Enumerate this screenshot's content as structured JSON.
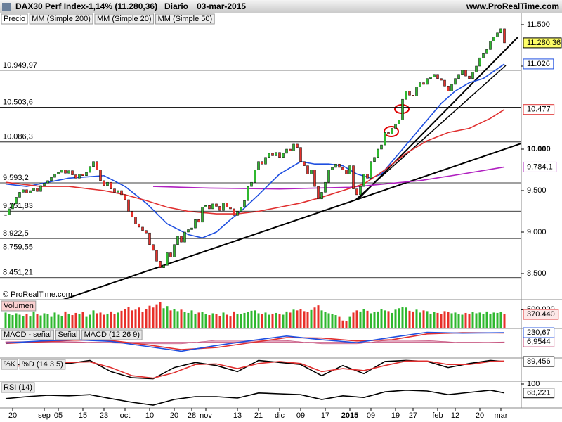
{
  "header": {
    "instrument": "DAX30 Perf Index",
    "change": "-1,14% (11.280,36)",
    "period": "Diario",
    "date": "03-mar-2015",
    "site": "www.ProRealTime.com"
  },
  "chart_data": [
    {
      "type": "candlestick",
      "name": "Precio",
      "annotation": "© ProRealTime.com",
      "categories": [
        null,
        null,
        "20",
        null,
        null,
        null,
        null,
        null,
        null,
        null,
        null,
        "sep",
        null,
        null,
        null,
        "05",
        null,
        null,
        null,
        null,
        null,
        null,
        "15",
        null,
        null,
        null,
        null,
        null,
        "23",
        null,
        null,
        null,
        null,
        null,
        "oct",
        null,
        null,
        null,
        null,
        null,
        null,
        "10",
        null,
        null,
        null,
        null,
        null,
        null,
        "20",
        null,
        null,
        null,
        null,
        "28",
        null,
        null,
        null,
        "nov",
        null,
        null,
        null,
        null,
        null,
        null,
        null,
        null,
        "13",
        null,
        null,
        null,
        null,
        null,
        "21",
        null,
        null,
        null,
        null,
        null,
        "dic",
        null,
        null,
        null,
        null,
        null,
        "09",
        null,
        null,
        null,
        null,
        null,
        null,
        "17",
        null,
        null,
        null,
        null,
        null,
        null,
        "2015",
        null,
        null,
        null,
        null,
        null,
        "09",
        null,
        null,
        null,
        null,
        null,
        null,
        "19",
        null,
        null,
        null,
        null,
        "27",
        null,
        null,
        null,
        null,
        null,
        null,
        "feb",
        null,
        null,
        null,
        null,
        "12",
        null,
        null,
        null,
        null,
        null,
        null,
        "20",
        null,
        null,
        null,
        null,
        null,
        "mar",
        null
      ],
      "values": [
        9210,
        9280,
        9340,
        9420,
        9480,
        9510,
        9470,
        9500,
        9530,
        9490,
        9560,
        9590,
        9620,
        9660,
        9700,
        9720,
        9750,
        9710,
        9740,
        9690,
        9650,
        9700,
        9680,
        9720,
        9790,
        9850,
        9750,
        9620,
        9560,
        9600,
        9520,
        9480,
        9500,
        9450,
        9390,
        9250,
        9180,
        9100,
        9060,
        9020,
        8990,
        8850,
        8780,
        8650,
        8570,
        8600,
        8750,
        8700,
        8850,
        8950,
        8880,
        9000,
        9030,
        9050,
        9150,
        9120,
        9300,
        9320,
        9280,
        9340,
        9310,
        9260,
        9350,
        9300,
        9280,
        9200,
        9250,
        9300,
        9380,
        9550,
        9600,
        9750,
        9850,
        9820,
        9900,
        9950,
        9920,
        9960,
        9900,
        9950,
        10000,
        9980,
        10060,
        10020,
        9850,
        9800,
        9700,
        9750,
        9550,
        9400,
        9480,
        9600,
        9750,
        9780,
        9820,
        9780,
        9750,
        9700,
        9800,
        9520,
        9450,
        9550,
        9700,
        9650,
        9850,
        9900,
        10000,
        10050,
        10200,
        10180,
        10250,
        10300,
        10350,
        10600,
        10700,
        10650,
        10640,
        10750,
        10800,
        10780,
        10850,
        10870,
        10900,
        10850,
        10830,
        10760,
        10700,
        10780,
        10850,
        10900,
        10950,
        10880,
        10850,
        10930,
        11000,
        11100,
        11150,
        11200,
        11300,
        11350,
        11400,
        11450,
        11280.36
      ],
      "last_label": "11.280,36",
      "up_color": "#2fb82f",
      "down_color": "#e8302a",
      "ylim": [
        8195,
        11610
      ],
      "yticks": [
        {
          "value": 11500,
          "label": "11.500"
        },
        {
          "value": 11000,
          "label": "11.000"
        },
        {
          "value": 10000,
          "label": "10.000"
        },
        {
          "value": 9500,
          "label": "9.500"
        },
        {
          "value": 9000,
          "label": "9.000"
        },
        {
          "value": 8500,
          "label": "8.500"
        }
      ],
      "levels": [
        {
          "value": 10949.97,
          "label": "10.949,97"
        },
        {
          "value": 10503.6,
          "label": "10.503,6"
        },
        {
          "value": 10086.3,
          "label": "10.086,3"
        },
        {
          "value": 9593.2,
          "label": "9.593,2"
        },
        {
          "value": 9251.83,
          "label": "9.251,83"
        },
        {
          "value": 8922.5,
          "label": "8.922,5"
        },
        {
          "value": 8759.55,
          "label": "8.759,55"
        },
        {
          "value": 8451.21,
          "label": "8.451,21"
        }
      ],
      "series": [
        {
          "name": "MM (Simple 200)",
          "color": "#b020c0",
          "last_label": "9.784,1",
          "x": [
            42,
            58,
            78,
            98,
            118,
            130,
            142
          ],
          "values": [
            9550,
            9530,
            9520,
            9540,
            9620,
            9700,
            9784.1
          ]
        },
        {
          "name": "MM (Simple 20)",
          "color": "#1f4fe0",
          "last_label": "11.026",
          "x": [
            0,
            6,
            18,
            28,
            34,
            40,
            46,
            52,
            56,
            60,
            64,
            67,
            72,
            78,
            84,
            88,
            92,
            96,
            100,
            104,
            107,
            112,
            118,
            124,
            128,
            132,
            136,
            142
          ],
          "values": [
            9580,
            9550,
            9650,
            9680,
            9550,
            9350,
            9100,
            8970,
            8930,
            9000,
            9150,
            9250,
            9450,
            9700,
            9850,
            9820,
            9820,
            9800,
            9700,
            9650,
            9700,
            9950,
            10250,
            10550,
            10700,
            10800,
            10850,
            11026
          ]
        },
        {
          "name": "MM (Simple 50)",
          "color": "#e03030",
          "last_label": "10.477",
          "x": [
            0,
            10,
            18,
            28,
            34,
            40,
            46,
            52,
            60,
            66,
            72,
            78,
            84,
            90,
            96,
            102,
            108,
            114,
            120,
            126,
            132,
            138,
            142
          ],
          "values": [
            9600,
            9550,
            9550,
            9500,
            9450,
            9380,
            9300,
            9250,
            9220,
            9220,
            9250,
            9300,
            9350,
            9420,
            9500,
            9580,
            9750,
            9950,
            10100,
            10200,
            10250,
            10370,
            10477
          ]
        }
      ]
    },
    {
      "type": "bar",
      "title": "Volumen",
      "last_label": "370.440",
      "ylim": [
        0,
        740000
      ],
      "yticks": [
        {
          "value": 500000,
          "label": "500.000"
        }
      ],
      "values": [
        420000,
        380000,
        350000,
        400000,
        360000,
        330000,
        390000,
        310000,
        450000,
        370000,
        340000,
        400000,
        380000,
        300000,
        420000,
        360000,
        330000,
        450000,
        390000,
        350000,
        410000,
        380000,
        440000,
        300000,
        360000,
        480000,
        400000,
        420000,
        360000,
        390000,
        450000,
        380000,
        420000,
        470000,
        520000,
        580000,
        480000,
        500000,
        560000,
        430000,
        520000,
        610000,
        560000,
        650000,
        720000,
        540000,
        600000,
        480000,
        520000,
        460000,
        500000,
        430000,
        410000,
        480000,
        390000,
        420000,
        440000,
        370000,
        350000,
        400000,
        380000,
        330000,
        420000,
        360000,
        310000,
        450000,
        370000,
        390000,
        410000,
        430000,
        470000,
        480000,
        400000,
        380000,
        420000,
        360000,
        390000,
        410000,
        380000,
        360000,
        450000,
        420000,
        500000,
        480000,
        520000,
        460000,
        430000,
        490000,
        560000,
        620000,
        480000,
        440000,
        400000,
        380000,
        350000,
        300000,
        200000,
        180000,
        300000,
        420000,
        480000,
        450000,
        520000,
        470000,
        400000,
        430000,
        450000,
        520000,
        480000,
        460000,
        410000,
        500000,
        540000,
        580000,
        560000,
        470000,
        450000,
        500000,
        420000,
        480000,
        460000,
        390000,
        430000,
        410000,
        380000,
        460000,
        440000,
        400000,
        420000,
        380000,
        360000,
        410000,
        390000,
        440000,
        400000,
        420000,
        380000,
        450000,
        390000,
        420000,
        410000,
        430000,
        370440
      ]
    },
    {
      "type": "line",
      "ylim": [
        -350,
        300
      ],
      "series": [
        {
          "name": "MACD - señal",
          "color": "#c04070",
          "style": "area",
          "last_label": "6,9544",
          "x": [
            0,
            10,
            20,
            30,
            40,
            50,
            60,
            70,
            80,
            90,
            100,
            110,
            120,
            130,
            142
          ],
          "values": [
            10,
            20,
            10,
            -20,
            -40,
            -40,
            50,
            50,
            40,
            -40,
            -40,
            60,
            40,
            -10,
            6.9544
          ]
        },
        {
          "name": "Señal",
          "color": "#e03030",
          "x": [
            0,
            10,
            20,
            30,
            40,
            50,
            60,
            70,
            80,
            90,
            100,
            110,
            120,
            130,
            142
          ],
          "values": [
            -30,
            10,
            50,
            40,
            -60,
            -180,
            -130,
            -10,
            110,
            100,
            30,
            60,
            200,
            230,
            223.72
          ]
        },
        {
          "name": "MACD (12 26 9)",
          "color": "#1f4fe0",
          "last_label": "230,67",
          "x": [
            0,
            10,
            20,
            30,
            40,
            50,
            60,
            70,
            80,
            90,
            100,
            110,
            120,
            130,
            142
          ],
          "values": [
            -20,
            30,
            60,
            20,
            -100,
            -220,
            -80,
            40,
            150,
            60,
            -10,
            120,
            240,
            220,
            230.67
          ]
        }
      ]
    },
    {
      "type": "line",
      "ylim": [
        0,
        100
      ],
      "series": [
        {
          "name": "%K",
          "color": "#000000",
          "last_label": "89,456",
          "x": [
            0,
            6,
            12,
            18,
            24,
            30,
            36,
            42,
            48,
            54,
            60,
            66,
            72,
            78,
            84,
            90,
            96,
            102,
            108,
            114,
            120,
            126,
            132,
            138,
            142
          ],
          "values": [
            60,
            85,
            90,
            80,
            95,
            40,
            10,
            5,
            60,
            85,
            70,
            40,
            95,
            85,
            75,
            20,
            70,
            30,
            90,
            95,
            90,
            60,
            80,
            95,
            89.456
          ]
        },
        {
          "name": "%D (14 3 5)",
          "color": "#e03030",
          "x": [
            0,
            6,
            12,
            18,
            24,
            30,
            36,
            42,
            48,
            54,
            60,
            66,
            72,
            78,
            84,
            90,
            96,
            102,
            108,
            114,
            120,
            126,
            132,
            138,
            142
          ],
          "values": [
            55,
            75,
            88,
            85,
            88,
            60,
            20,
            8,
            35,
            75,
            78,
            55,
            80,
            90,
            80,
            40,
            55,
            45,
            70,
            92,
            92,
            75,
            75,
            90,
            92
          ]
        }
      ]
    },
    {
      "type": "line",
      "ylim": [
        20,
        105
      ],
      "yticks": [
        100
      ],
      "series": [
        {
          "name": "RSI (14)",
          "color": "#000000",
          "last_label": "68,221",
          "x": [
            0,
            6,
            12,
            18,
            24,
            30,
            36,
            42,
            48,
            54,
            60,
            66,
            72,
            78,
            84,
            90,
            96,
            102,
            108,
            114,
            120,
            126,
            132,
            138,
            142
          ],
          "values": [
            48,
            55,
            60,
            58,
            62,
            48,
            35,
            25,
            45,
            55,
            55,
            50,
            68,
            65,
            62,
            45,
            58,
            52,
            72,
            78,
            75,
            62,
            70,
            78,
            68.221
          ]
        }
      ]
    }
  ]
}
